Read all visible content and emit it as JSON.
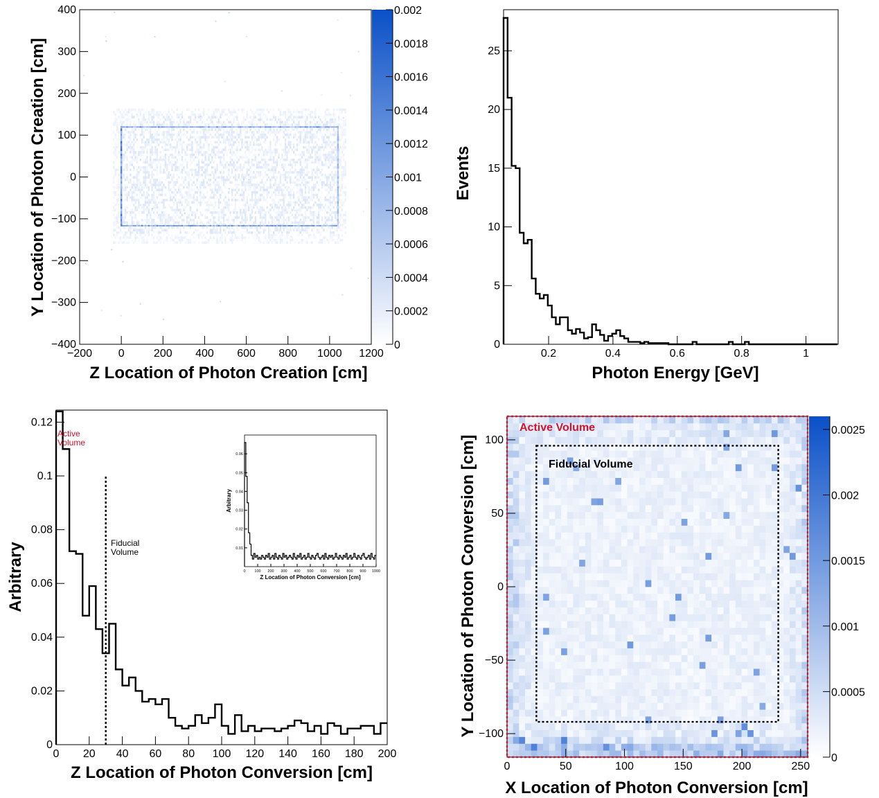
{
  "colors": {
    "axis": "#000000",
    "heat_low": "#ffffff",
    "heat_high": "#0a50c8",
    "active_volume": "#d0142c",
    "fiducial_volume": "#000000",
    "histogram_line": "#000000"
  },
  "chart_data": [
    {
      "id": "top-left",
      "type": "heatmap",
      "title": "",
      "xlabel": "Z Location of Photon Creation [cm]",
      "ylabel": "Y Location of Photon Creation [cm]",
      "xlim": [
        -200,
        1200
      ],
      "ylim": [
        -400,
        400
      ],
      "x_ticks": [
        -200,
        0,
        200,
        400,
        600,
        800,
        1000,
        1200
      ],
      "y_ticks": [
        -400,
        -300,
        -200,
        -100,
        0,
        100,
        200,
        300,
        400
      ],
      "colorbar": {
        "range": [
          0,
          0.002
        ],
        "ticks": [
          "0",
          "0.0002",
          "0.0004",
          "0.0006",
          "0.0008",
          "0.001",
          "0.0012",
          "0.0014",
          "0.0016",
          "0.0018",
          "0.002"
        ]
      },
      "features": {
        "uniform_region": {
          "z": [
            -40,
            1080
          ],
          "y": [
            -160,
            160
          ],
          "density": 0.00015
        },
        "dense_box_outline": {
          "z": [
            0,
            1040
          ],
          "y": [
            -118,
            118
          ],
          "density": 0.0011
        }
      }
    },
    {
      "id": "top-right",
      "type": "line",
      "style": "step-histogram",
      "title": "",
      "xlabel": "Photon Energy [GeV]",
      "ylabel": "Events",
      "xlim": [
        0.06,
        1.1
      ],
      "ylim": [
        0,
        28.5
      ],
      "x_ticks": [
        0.2,
        0.4,
        0.6,
        0.8,
        1
      ],
      "y_ticks": [
        0,
        5,
        10,
        15,
        20,
        25
      ],
      "bin_start": 0.06,
      "bin_width": 0.0125,
      "values": [
        27.8,
        21.0,
        15.2,
        15.0,
        9.5,
        8.6,
        8.9,
        5.6,
        4.3,
        3.9,
        4.2,
        3.3,
        2.3,
        1.7,
        2.3,
        2.3,
        1.2,
        0.9,
        1.3,
        1.0,
        0.5,
        0.6,
        1.7,
        1.2,
        0.8,
        0.3,
        0.7,
        0.9,
        1.2,
        0.7,
        0.5,
        0.2,
        0.2,
        0.2,
        0.1,
        0.2,
        0.1,
        0.1,
        0.1,
        0.1,
        0.1,
        0.0,
        0.0,
        0.0,
        0.0,
        0.0,
        0.0,
        0.2,
        0.0,
        0.0,
        0.0,
        0.0,
        0.0,
        0.0,
        0.0,
        0.0,
        0.2,
        0.0,
        0.0,
        0.0,
        0.2,
        0.0,
        0.0,
        0.0,
        0.0,
        0.0,
        0.0,
        0.0,
        0.0,
        0.0,
        0.0,
        0.0,
        0.0,
        0.0,
        0.0,
        0.0,
        0.0,
        0.0,
        0.0,
        0.0,
        0.0,
        0.0,
        0.0
      ]
    },
    {
      "id": "bottom-left",
      "type": "line",
      "style": "step-histogram",
      "title": "",
      "xlabel": "Z Location of Photon Conversion [cm]",
      "ylabel": "Arbitrary",
      "xlim": [
        0,
        200
      ],
      "ylim": [
        0,
        0.1245
      ],
      "x_ticks": [
        0,
        20,
        40,
        60,
        80,
        100,
        120,
        140,
        160,
        180,
        200
      ],
      "y_ticks": [
        0,
        0.02,
        0.04,
        0.06,
        0.08,
        0.1,
        0.12
      ],
      "bin_width": 4,
      "values": [
        0.124,
        0.11,
        0.072,
        0.071,
        0.048,
        0.059,
        0.043,
        0.034,
        0.045,
        0.028,
        0.022,
        0.025,
        0.02,
        0.016,
        0.017,
        0.015,
        0.017,
        0.01,
        0.007,
        0.006,
        0.007,
        0.011,
        0.008,
        0.01,
        0.015,
        0.007,
        0.004,
        0.011,
        0.005,
        0.007,
        0.005,
        0.006,
        0.006,
        0.005,
        0.006,
        0.007,
        0.009,
        0.008,
        0.005,
        0.007,
        0.004,
        0.008,
        0.007,
        0.004,
        0.006,
        0.006,
        0.007,
        0.007,
        0.004,
        0.008
      ],
      "annotations": [
        {
          "text": "Active Volume",
          "lines": [
            "Active",
            "Volume"
          ],
          "color": "#d0142c"
        },
        {
          "text": "Fiducial Volume",
          "lines": [
            "Fiducial",
            "Volume"
          ],
          "color": "#000000",
          "x": 30
        }
      ],
      "fiducial_line": {
        "x": 30,
        "y_top": 0.1
      },
      "inset": {
        "type": "line",
        "style": "step-histogram",
        "xlabel": "Z Location of Photon Conversion [cm]",
        "ylabel": "Arbitrary",
        "xlim": [
          0,
          1000
        ],
        "ylim": [
          0,
          0.07
        ],
        "x_ticks": [
          0,
          100,
          200,
          300,
          400,
          500,
          600,
          700,
          800,
          900,
          1000
        ],
        "y_ticks": [
          0.01,
          0.02,
          0.03,
          0.04,
          0.05,
          0.06
        ],
        "bin_width": 10,
        "values": [
          0.066,
          0.048,
          0.034,
          0.018,
          0.012,
          0.006,
          0.004,
          0.007,
          0.005,
          0.006,
          0.004,
          0.005,
          0.004,
          0.006,
          0.005,
          0.004,
          0.006,
          0.005,
          0.007,
          0.004,
          0.005,
          0.006,
          0.004,
          0.007,
          0.005,
          0.004,
          0.006,
          0.005,
          0.004,
          0.007,
          0.005,
          0.006,
          0.004,
          0.005,
          0.006,
          0.005,
          0.004,
          0.007,
          0.005,
          0.004,
          0.006,
          0.005,
          0.007,
          0.004,
          0.005,
          0.006,
          0.004,
          0.005,
          0.007,
          0.005,
          0.004,
          0.006,
          0.005,
          0.004,
          0.006,
          0.007,
          0.005,
          0.004,
          0.005,
          0.006,
          0.004,
          0.007,
          0.005,
          0.004,
          0.006,
          0.005,
          0.006,
          0.004,
          0.005,
          0.007,
          0.005,
          0.004,
          0.006,
          0.005,
          0.004,
          0.006,
          0.005,
          0.007,
          0.004,
          0.005,
          0.006,
          0.004,
          0.005,
          0.007,
          0.005,
          0.004,
          0.006,
          0.005,
          0.004,
          0.006,
          0.007,
          0.005,
          0.004,
          0.005,
          0.006,
          0.004,
          0.007,
          0.005,
          0.004,
          0.006
        ]
      }
    },
    {
      "id": "bottom-right",
      "type": "heatmap",
      "title": "",
      "xlabel": "X Location of Photon Conversion [cm]",
      "ylabel": "Y Location of Photon Conversion [cm]",
      "xlim": [
        0,
        256
      ],
      "ylim": [
        -116,
        116
      ],
      "x_ticks": [
        0,
        50,
        100,
        150,
        200,
        250
      ],
      "y_ticks": [
        -100,
        -50,
        0,
        50,
        100
      ],
      "colorbar": {
        "range": [
          0,
          0.0026
        ],
        "ticks": [
          "0",
          "0.0005",
          "0.001",
          "0.0015",
          "0.002",
          "0.0025"
        ]
      },
      "regions": [
        {
          "label": "Active Volume",
          "x": [
            0,
            256
          ],
          "y": [
            -116,
            116
          ],
          "color": "#d0142c"
        },
        {
          "label": "Fiducial Volume",
          "x": [
            25,
            231
          ],
          "y": [
            -92,
            96
          ],
          "color": "#000000"
        }
      ],
      "features": {
        "mean_density": 0.0002,
        "edge_enhanced": true
      }
    }
  ]
}
